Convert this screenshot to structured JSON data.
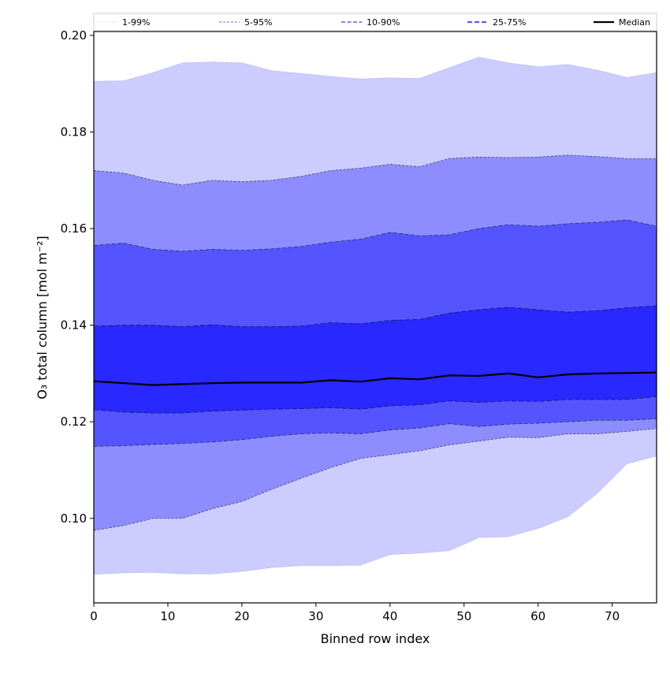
{
  "chart_data": {
    "type": "area",
    "title": "",
    "xlabel": "Binned row index",
    "ylabel": "O₃ total column [mol m⁻²]",
    "xlim": [
      0,
      76
    ],
    "ylim": [
      0.0825,
      0.2008
    ],
    "xticks": [
      0,
      10,
      20,
      30,
      40,
      50,
      60,
      70
    ],
    "yticks": [
      0.1,
      0.12,
      0.14,
      0.16,
      0.18,
      0.2
    ],
    "ytick_labels": [
      "0.10",
      "0.12",
      "0.14",
      "0.16",
      "0.18",
      "0.20"
    ],
    "legend_position": "top",
    "x": [
      0,
      4,
      8,
      12,
      16,
      20,
      24,
      28,
      32,
      36,
      40,
      44,
      48,
      52,
      56,
      60,
      64,
      68,
      72,
      76
    ],
    "percentiles": {
      "p1": [
        0.0884,
        0.0887,
        0.0888,
        0.0885,
        0.0885,
        0.089,
        0.0898,
        0.0902,
        0.0902,
        0.0903,
        0.0925,
        0.0928,
        0.0933,
        0.096,
        0.0962,
        0.0979,
        0.1003,
        0.1052,
        0.1113,
        0.1129
      ],
      "p5": [
        0.0975,
        0.0985,
        0.1,
        0.1,
        0.102,
        0.1035,
        0.106,
        0.1083,
        0.1105,
        0.1124,
        0.1132,
        0.114,
        0.1152,
        0.116,
        0.1168,
        0.1167,
        0.1175,
        0.1175,
        0.118,
        0.1186
      ],
      "p10": [
        0.1149,
        0.115,
        0.1153,
        0.1155,
        0.1158,
        0.1163,
        0.117,
        0.1175,
        0.1177,
        0.1175,
        0.1183,
        0.1187,
        0.1196,
        0.119,
        0.1195,
        0.1197,
        0.12,
        0.1203,
        0.1203,
        0.1206
      ],
      "p25": [
        0.1225,
        0.122,
        0.1218,
        0.1218,
        0.1222,
        0.1224,
        0.1226,
        0.1227,
        0.1229,
        0.1226,
        0.1233,
        0.1235,
        0.1243,
        0.124,
        0.1243,
        0.1242,
        0.1246,
        0.1246,
        0.1246,
        0.1252
      ],
      "p50": [
        0.1284,
        0.128,
        0.1276,
        0.1278,
        0.128,
        0.1281,
        0.1281,
        0.1281,
        0.1286,
        0.1283,
        0.129,
        0.1288,
        0.1296,
        0.1295,
        0.13,
        0.1292,
        0.1298,
        0.13,
        0.1301,
        0.1302
      ],
      "p75": [
        0.1398,
        0.14,
        0.14,
        0.1397,
        0.1401,
        0.1397,
        0.1397,
        0.1398,
        0.1405,
        0.1403,
        0.141,
        0.1412,
        0.1425,
        0.1432,
        0.1437,
        0.1432,
        0.1427,
        0.143,
        0.1436,
        0.144
      ],
      "p90": [
        0.1565,
        0.157,
        0.1557,
        0.1553,
        0.1557,
        0.1555,
        0.1558,
        0.1563,
        0.1572,
        0.1578,
        0.1592,
        0.1585,
        0.1587,
        0.16,
        0.1608,
        0.1605,
        0.161,
        0.1613,
        0.1618,
        0.1605
      ],
      "p95": [
        0.172,
        0.1715,
        0.17,
        0.169,
        0.17,
        0.1697,
        0.17,
        0.1708,
        0.172,
        0.1725,
        0.1733,
        0.1728,
        0.1745,
        0.1748,
        0.1747,
        0.1748,
        0.1752,
        0.1749,
        0.1745,
        0.1745
      ],
      "p99": [
        0.1905,
        0.1906,
        0.1923,
        0.1943,
        0.1945,
        0.1943,
        0.1927,
        0.1921,
        0.1915,
        0.191,
        0.1912,
        0.1911,
        0.1933,
        0.1955,
        0.1943,
        0.1935,
        0.194,
        0.1928,
        0.1913,
        0.1923
      ]
    },
    "bands": [
      {
        "name": "1-99%",
        "lower": "p1",
        "upper": "p99",
        "color": "#ccccff",
        "line_color": "#c8c8f0"
      },
      {
        "name": "5-95%",
        "lower": "p5",
        "upper": "p95",
        "color": "#8d8dff",
        "line_color": "#9a9ae0"
      },
      {
        "name": "10-90%",
        "lower": "p10",
        "upper": "p90",
        "color": "#5555ff",
        "line_color": "#7a7ae8"
      },
      {
        "name": "25-75%",
        "lower": "p25",
        "upper": "p75",
        "color": "#2828ff",
        "line_color": "#5c5cf0"
      }
    ],
    "median": {
      "name": "Median",
      "key": "p50",
      "color": "#000000"
    }
  }
}
